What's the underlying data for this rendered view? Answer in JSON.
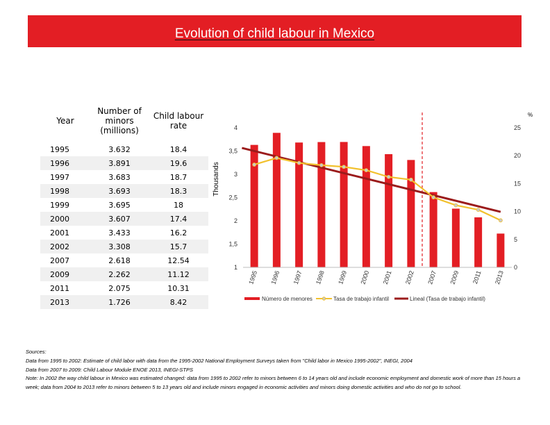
{
  "header": {
    "title": "Evolution of child labour in Mexico"
  },
  "table": {
    "headers": [
      "Year",
      "Number of minors (millions)",
      "Child labour rate"
    ],
    "rows": [
      [
        "1995",
        "3.632",
        "18.4"
      ],
      [
        "1996",
        "3.891",
        "19.6"
      ],
      [
        "1997",
        "3.683",
        "18.7"
      ],
      [
        "1998",
        "3.693",
        "18.3"
      ],
      [
        "1999",
        "3.695",
        "18"
      ],
      [
        "2000",
        "3.607",
        "17.4"
      ],
      [
        "2001",
        "3.433",
        "16.2"
      ],
      [
        "2002",
        "3.308",
        "15.7"
      ],
      [
        "2007",
        "2.618",
        "12.54"
      ],
      [
        "2009",
        "2.262",
        "11.12"
      ],
      [
        "2011",
        "2.075",
        "10.31"
      ],
      [
        "2013",
        "1.726",
        "8.42"
      ]
    ]
  },
  "chart_data": {
    "type": "bar",
    "categories": [
      "1995",
      "1996",
      "1997",
      "1998",
      "1999",
      "2000",
      "2001",
      "2002",
      "2007",
      "2009",
      "2011",
      "2013"
    ],
    "series": [
      {
        "name": "Número de menores",
        "type": "bar",
        "axis": "left",
        "color": "#e31e24",
        "values": [
          3.632,
          3.891,
          3.683,
          3.693,
          3.695,
          3.607,
          3.433,
          3.308,
          2.618,
          2.262,
          2.075,
          1.726
        ]
      },
      {
        "name": "Tasa de trabajo infantil",
        "type": "line",
        "axis": "right",
        "color": "#f2c12e",
        "values": [
          18.4,
          19.6,
          18.7,
          18.3,
          18,
          17.4,
          16.2,
          15.7,
          12.54,
          11.12,
          10.31,
          8.42
        ]
      },
      {
        "name": "Lineal (Tasa de trabajo infantil)",
        "type": "trendline",
        "axis": "right",
        "color": "#9b1b1b",
        "of": "Tasa de trabajo infantil"
      }
    ],
    "ylabel": "Thousands",
    "ylim": [
      1,
      4
    ],
    "yticks": [
      "1",
      "1,5",
      "2",
      "2,5",
      "3",
      "3,5",
      "4"
    ],
    "y2label": "%",
    "y2lim": [
      0,
      25
    ],
    "y2ticks": [
      "0",
      "5",
      "10",
      "15",
      "20",
      "25"
    ],
    "reference_line": {
      "between": [
        "2002",
        "2007"
      ],
      "style": "dashed",
      "color": "#e31e24"
    },
    "grid": false,
    "legend": "bottom"
  },
  "notes": {
    "heading": "Sources:",
    "lines": [
      "Data from 1995 to 2002: Estimate of child labor with data from the 1995-2002 National Employment Surveys taken from \"Child labor in Mexico 1995-2002\", INEGI, 2004",
      "Data from 2007 to 2009: Child Labour Module ENOE 2013, INEGI-STPS",
      "Note: In 2002 the way child labour in Mexico was estimated changed: data from 1995 to 2002 refer to minors between 6 to 14 years old and include economic employment and domestic work of more than 15 hours a week; data from 2004 to 2013 refer to minors between 5 to 13 years old and include minors engaged in economic activities and minors doing domestic activities and who do not go to school."
    ]
  }
}
